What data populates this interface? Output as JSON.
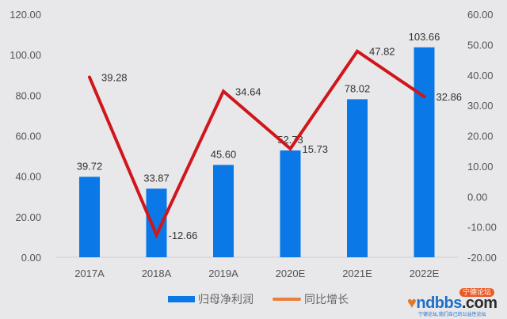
{
  "chart_data": {
    "type": "bar+line",
    "title": "",
    "categories": [
      "2017A",
      "2018A",
      "2019A",
      "2020E",
      "2021E",
      "2022E"
    ],
    "series": [
      {
        "name": "归母净利润",
        "type": "bar",
        "axis": "left",
        "color": "#0a78e6",
        "values": [
          39.72,
          33.87,
          45.6,
          52.73,
          78.02,
          103.66
        ],
        "labels": [
          "39.72",
          "33.87",
          "45.60",
          "52.73",
          "78.02",
          "103.66"
        ]
      },
      {
        "name": "同比增长",
        "type": "line",
        "axis": "right",
        "color": "#d0161b",
        "legend_color": "#e8803a",
        "values": [
          39.28,
          -12.66,
          34.64,
          15.73,
          47.82,
          32.86
        ],
        "labels": [
          "39.28",
          "-12.66",
          "34.64",
          "15.73",
          "47.82",
          "32.86"
        ]
      }
    ],
    "left_axis": {
      "range": [
        0,
        120
      ],
      "ticks": [
        "0.00",
        "20.00",
        "40.00",
        "60.00",
        "80.00",
        "100.00",
        "120.00"
      ]
    },
    "right_axis": {
      "range": [
        -20,
        60
      ],
      "ticks": [
        "-20.00",
        "-10.00",
        "0.00",
        "10.00",
        "20.00",
        "30.00",
        "40.00",
        "50.00",
        "60.00"
      ]
    },
    "xlabel": "",
    "ylabel": "",
    "grid": false,
    "legend_position": "bottom"
  },
  "legend": {
    "items": [
      {
        "label": "归母净利润",
        "color": "#0a78e6",
        "kind": "bar"
      },
      {
        "label": "同比增长",
        "color": "#e8803a",
        "kind": "line"
      }
    ]
  },
  "watermark": {
    "heart": "♥",
    "brand_main": "ndbbs",
    "brand_suffix": ".com",
    "badge": "宁德论坛",
    "tagline": "宁德论坛,我们自己的公益性论坛"
  }
}
